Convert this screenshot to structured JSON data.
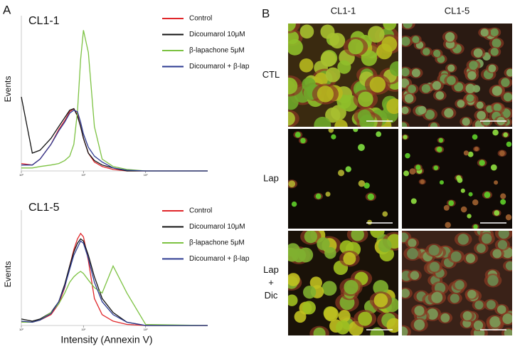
{
  "panel_a_label": "A",
  "chart_data": [
    {
      "type": "line",
      "title": "CL1-1",
      "ylabel": "Events",
      "log_x": true,
      "xlim": [
        1,
        1000
      ],
      "ylim": [
        0,
        100
      ],
      "xticks": [
        {
          "value": 1,
          "label": "10⁰"
        },
        {
          "value": 10,
          "label": "10¹"
        },
        {
          "value": 100,
          "label": "10²"
        }
      ],
      "legend": "upper right",
      "x": [
        1,
        1.5,
        2,
        3,
        4,
        5,
        6,
        7,
        8,
        9,
        10,
        12,
        15,
        20,
        30,
        50,
        100,
        1000
      ],
      "series": [
        {
          "name": "Control",
          "color": "#e0262a",
          "values": [
            5,
            4,
            8,
            18,
            28,
            34,
            40,
            42,
            38,
            30,
            22,
            12,
            6,
            3,
            1,
            0,
            0,
            0
          ]
        },
        {
          "name": "Dicoumarol 10μM",
          "color": "#111111",
          "values": [
            50,
            12,
            14,
            22,
            30,
            36,
            41,
            42,
            37,
            30,
            22,
            12,
            7,
            4,
            2,
            0,
            0,
            0
          ]
        },
        {
          "name": "β-lapachone 5μM",
          "color": "#7cc242",
          "values": [
            2,
            2,
            3,
            4,
            5,
            7,
            10,
            18,
            40,
            75,
            95,
            80,
            30,
            8,
            3,
            1,
            0,
            0
          ]
        },
        {
          "name": "Dicoumarol + β-lap",
          "color": "#2b3990",
          "values": [
            4,
            4,
            8,
            18,
            27,
            33,
            39,
            41,
            40,
            33,
            25,
            16,
            10,
            6,
            2,
            0.5,
            0,
            0
          ]
        }
      ]
    },
    {
      "type": "line",
      "title": "CL1-5",
      "ylabel": "Events",
      "xlabel": "Intensity (Annexin V)",
      "log_x": true,
      "xlim": [
        1,
        1000
      ],
      "ylim": [
        0,
        100
      ],
      "xticks": [
        {
          "value": 1,
          "label": "10⁰"
        },
        {
          "value": 10,
          "label": "10¹"
        },
        {
          "value": 100,
          "label": "10²"
        }
      ],
      "legend": "upper right",
      "x": [
        1,
        1.5,
        2,
        3,
        4,
        5,
        6,
        7,
        8,
        9,
        10,
        12,
        15,
        20,
        30,
        50,
        100,
        1000
      ],
      "series": [
        {
          "name": "Control",
          "color": "#e0262a",
          "values": [
            3,
            3,
            5,
            10,
            20,
            35,
            55,
            70,
            80,
            85,
            82,
            60,
            25,
            10,
            4,
            1,
            0,
            0
          ]
        },
        {
          "name": "Dicoumarol 10μM",
          "color": "#111111",
          "values": [
            6,
            4,
            6,
            12,
            22,
            38,
            55,
            68,
            76,
            80,
            78,
            65,
            45,
            25,
            12,
            3,
            0,
            0
          ]
        },
        {
          "name": "β-lapachone 5μM",
          "color": "#7cc242",
          "values": [
            3,
            3,
            5,
            12,
            20,
            30,
            40,
            45,
            48,
            50,
            48,
            42,
            35,
            30,
            55,
            30,
            1,
            0
          ]
        },
        {
          "name": "Dicoumarol + β-lap",
          "color": "#2b3990",
          "values": [
            4,
            3,
            5,
            11,
            22,
            36,
            52,
            65,
            72,
            78,
            76,
            62,
            40,
            22,
            10,
            3,
            0,
            0
          ]
        }
      ]
    }
  ],
  "panel_b": {
    "label": "B",
    "columns": [
      "CL1-1",
      "CL1-5"
    ],
    "rows": [
      {
        "label": [
          "CTL"
        ]
      },
      {
        "label": [
          "Lap"
        ]
      },
      {
        "label": [
          "Lap",
          "+",
          "Dic"
        ]
      }
    ]
  }
}
